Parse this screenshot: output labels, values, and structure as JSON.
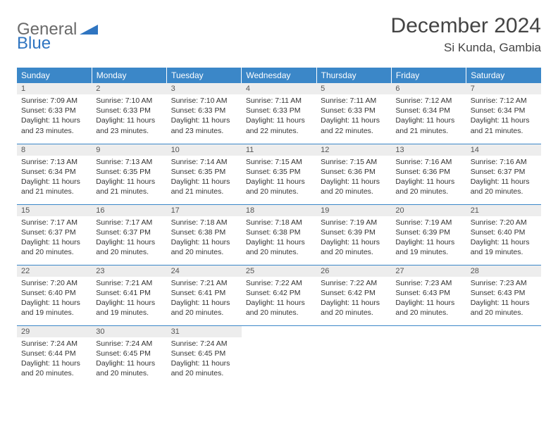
{
  "logo": {
    "general": "General",
    "blue": "Blue"
  },
  "header": {
    "month_title": "December 2024",
    "location": "Si Kunda, Gambia"
  },
  "colors": {
    "header_bg": "#3b87c8",
    "header_text": "#ffffff",
    "daynum_bg": "#ededed",
    "rule": "#3b87c8"
  },
  "day_labels": [
    "Sunday",
    "Monday",
    "Tuesday",
    "Wednesday",
    "Thursday",
    "Friday",
    "Saturday"
  ],
  "days": [
    {
      "n": "1",
      "sunrise": "7:09 AM",
      "sunset": "6:33 PM",
      "daylight": "11 hours and 23 minutes."
    },
    {
      "n": "2",
      "sunrise": "7:10 AM",
      "sunset": "6:33 PM",
      "daylight": "11 hours and 23 minutes."
    },
    {
      "n": "3",
      "sunrise": "7:10 AM",
      "sunset": "6:33 PM",
      "daylight": "11 hours and 23 minutes."
    },
    {
      "n": "4",
      "sunrise": "7:11 AM",
      "sunset": "6:33 PM",
      "daylight": "11 hours and 22 minutes."
    },
    {
      "n": "5",
      "sunrise": "7:11 AM",
      "sunset": "6:33 PM",
      "daylight": "11 hours and 22 minutes."
    },
    {
      "n": "6",
      "sunrise": "7:12 AM",
      "sunset": "6:34 PM",
      "daylight": "11 hours and 21 minutes."
    },
    {
      "n": "7",
      "sunrise": "7:12 AM",
      "sunset": "6:34 PM",
      "daylight": "11 hours and 21 minutes."
    },
    {
      "n": "8",
      "sunrise": "7:13 AM",
      "sunset": "6:34 PM",
      "daylight": "11 hours and 21 minutes."
    },
    {
      "n": "9",
      "sunrise": "7:13 AM",
      "sunset": "6:35 PM",
      "daylight": "11 hours and 21 minutes."
    },
    {
      "n": "10",
      "sunrise": "7:14 AM",
      "sunset": "6:35 PM",
      "daylight": "11 hours and 21 minutes."
    },
    {
      "n": "11",
      "sunrise": "7:15 AM",
      "sunset": "6:35 PM",
      "daylight": "11 hours and 20 minutes."
    },
    {
      "n": "12",
      "sunrise": "7:15 AM",
      "sunset": "6:36 PM",
      "daylight": "11 hours and 20 minutes."
    },
    {
      "n": "13",
      "sunrise": "7:16 AM",
      "sunset": "6:36 PM",
      "daylight": "11 hours and 20 minutes."
    },
    {
      "n": "14",
      "sunrise": "7:16 AM",
      "sunset": "6:37 PM",
      "daylight": "11 hours and 20 minutes."
    },
    {
      "n": "15",
      "sunrise": "7:17 AM",
      "sunset": "6:37 PM",
      "daylight": "11 hours and 20 minutes."
    },
    {
      "n": "16",
      "sunrise": "7:17 AM",
      "sunset": "6:37 PM",
      "daylight": "11 hours and 20 minutes."
    },
    {
      "n": "17",
      "sunrise": "7:18 AM",
      "sunset": "6:38 PM",
      "daylight": "11 hours and 20 minutes."
    },
    {
      "n": "18",
      "sunrise": "7:18 AM",
      "sunset": "6:38 PM",
      "daylight": "11 hours and 20 minutes."
    },
    {
      "n": "19",
      "sunrise": "7:19 AM",
      "sunset": "6:39 PM",
      "daylight": "11 hours and 20 minutes."
    },
    {
      "n": "20",
      "sunrise": "7:19 AM",
      "sunset": "6:39 PM",
      "daylight": "11 hours and 19 minutes."
    },
    {
      "n": "21",
      "sunrise": "7:20 AM",
      "sunset": "6:40 PM",
      "daylight": "11 hours and 19 minutes."
    },
    {
      "n": "22",
      "sunrise": "7:20 AM",
      "sunset": "6:40 PM",
      "daylight": "11 hours and 19 minutes."
    },
    {
      "n": "23",
      "sunrise": "7:21 AM",
      "sunset": "6:41 PM",
      "daylight": "11 hours and 19 minutes."
    },
    {
      "n": "24",
      "sunrise": "7:21 AM",
      "sunset": "6:41 PM",
      "daylight": "11 hours and 20 minutes."
    },
    {
      "n": "25",
      "sunrise": "7:22 AM",
      "sunset": "6:42 PM",
      "daylight": "11 hours and 20 minutes."
    },
    {
      "n": "26",
      "sunrise": "7:22 AM",
      "sunset": "6:42 PM",
      "daylight": "11 hours and 20 minutes."
    },
    {
      "n": "27",
      "sunrise": "7:23 AM",
      "sunset": "6:43 PM",
      "daylight": "11 hours and 20 minutes."
    },
    {
      "n": "28",
      "sunrise": "7:23 AM",
      "sunset": "6:43 PM",
      "daylight": "11 hours and 20 minutes."
    },
    {
      "n": "29",
      "sunrise": "7:24 AM",
      "sunset": "6:44 PM",
      "daylight": "11 hours and 20 minutes."
    },
    {
      "n": "30",
      "sunrise": "7:24 AM",
      "sunset": "6:45 PM",
      "daylight": "11 hours and 20 minutes."
    },
    {
      "n": "31",
      "sunrise": "7:24 AM",
      "sunset": "6:45 PM",
      "daylight": "11 hours and 20 minutes."
    }
  ],
  "labels": {
    "sunrise": "Sunrise:",
    "sunset": "Sunset:",
    "daylight": "Daylight:"
  }
}
